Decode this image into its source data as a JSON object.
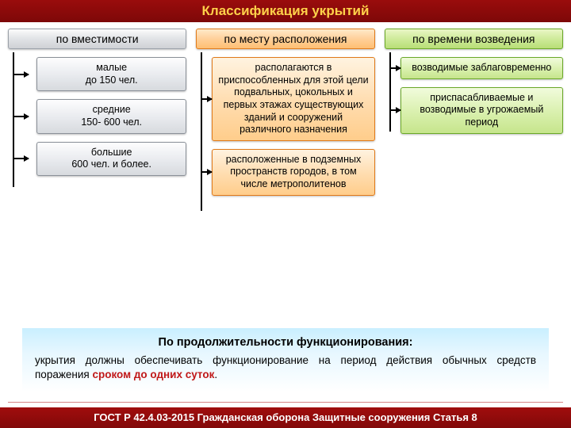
{
  "title": "Классификация укрытий",
  "columns": [
    {
      "header": "по вместимости",
      "header_style": "hdr-gray",
      "box_style": "box-gray",
      "items": [
        "малые\nдо 150 чел.",
        "средние\n150- 600 чел.",
        "большие\n600 чел. и более."
      ],
      "trunk_height": 170,
      "branch_width": 18,
      "item_padding_left": 36
    },
    {
      "header": "по месту расположения",
      "header_style": "hdr-orange",
      "box_style": "box-orange",
      "items": [
        "располагаются в приспособленных для этой цели подвальных, цокольных и первых этажах существующих зданий и сооружений различного назначения",
        "расположенные в подземных пространств городов, в том числе метрополитенов"
      ],
      "trunk_height": 200,
      "branch_width": 12,
      "item_padding_left": 20
    },
    {
      "header": "по времени возведения",
      "header_style": "hdr-green",
      "box_style": "box-green",
      "items": [
        "возводимые заблаговременно",
        "приспасабливаемые и возводимые в угрожаемый период"
      ],
      "trunk_height": 100,
      "branch_width": 12,
      "item_padding_left": 20
    }
  ],
  "bottom": {
    "title": "По продолжительности функционирования:",
    "text_before": "укрытия должны обеспечивать функционирование на период действия обычных средств поражения ",
    "highlight": "сроком  до одних суток",
    "text_after": "."
  },
  "footer": "ГОСТ Р 42.4.03-2015 Гражданская оборона Защитные сооружения Статья 8",
  "colors": {
    "title_bg": "#8a0a0a",
    "title_fg": "#ffd24a",
    "footer_bg": "#8a0a0a",
    "footer_fg": "#ffffff",
    "highlight_text": "#c01818"
  }
}
